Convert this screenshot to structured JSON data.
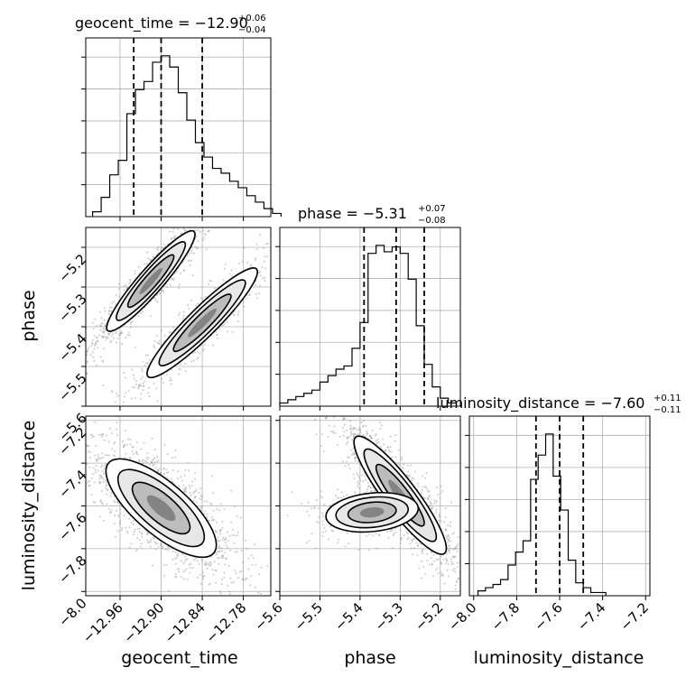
{
  "chart_data": {
    "type": "corner",
    "parameters": [
      {
        "name": "geocent_time",
        "title": {
          "label": "geocent_time = −12.90",
          "plus": "+0.06",
          "minus": "−0.04"
        },
        "range": [
          -13.01,
          -12.74
        ],
        "ticks": [
          "−12.96",
          "−12.90",
          "−12.84",
          "−12.78"
        ],
        "tick_values": [
          -12.96,
          -12.9,
          -12.84,
          -12.78
        ],
        "quantiles": [
          -12.94,
          -12.9,
          -12.84
        ],
        "histogram": {
          "bin_edges_start": -13.0,
          "bin_width": 0.0125,
          "counts": [
            0.03,
            0.12,
            0.26,
            0.35,
            0.64,
            0.79,
            0.84,
            0.96,
            1.0,
            0.93,
            0.77,
            0.6,
            0.46,
            0.37,
            0.3,
            0.27,
            0.22,
            0.18,
            0.13,
            0.09,
            0.05,
            0.02
          ]
        }
      },
      {
        "name": "phase",
        "title": {
          "label": "phase = −5.31",
          "plus": "+0.07",
          "minus": "−0.08"
        },
        "range": [
          -5.6,
          -5.15
        ],
        "ticks": [
          "−5.6",
          "−5.5",
          "−5.4",
          "−5.3",
          "−5.2"
        ],
        "tick_values": [
          -5.6,
          -5.5,
          -5.4,
          -5.3,
          -5.2
        ],
        "quantiles": [
          -5.39,
          -5.31,
          -5.24
        ],
        "histogram": {
          "bin_edges_start": -5.6,
          "bin_width": 0.02,
          "counts": [
            0.02,
            0.04,
            0.06,
            0.08,
            0.1,
            0.15,
            0.19,
            0.23,
            0.25,
            0.36,
            0.52,
            0.95,
            1.0,
            0.96,
            0.99,
            0.95,
            0.79,
            0.5,
            0.26,
            0.12,
            0.05,
            0.02
          ]
        }
      },
      {
        "name": "luminosity_distance",
        "title": {
          "label": "luminosity_distance = −7.60",
          "plus": "+0.11",
          "minus": "−0.11"
        },
        "range": [
          -8.02,
          -7.18
        ],
        "ticks": [
          "−8.0",
          "−7.8",
          "−7.6",
          "−7.4",
          "−7.2"
        ],
        "tick_values": [
          -8.0,
          -7.8,
          -7.6,
          -7.4,
          -7.2
        ],
        "quantiles": [
          -7.71,
          -7.6,
          -7.49
        ],
        "histogram": {
          "bin_edges_start": -7.98,
          "bin_width": 0.035,
          "counts": [
            0.03,
            0.05,
            0.07,
            0.1,
            0.19,
            0.27,
            0.34,
            0.72,
            0.87,
            1.0,
            0.74,
            0.53,
            0.22,
            0.08,
            0.05,
            0.02,
            0.02
          ]
        }
      }
    ],
    "pairs": [
      {
        "x": "geocent_time",
        "y": "phase",
        "modes": [
          {
            "center": [
              -12.915,
              -5.285
            ],
            "sx": 0.028,
            "sy": 0.055,
            "rho": 0.93,
            "weight": 0.6
          },
          {
            "center": [
              -12.84,
              -5.39
            ],
            "sx": 0.035,
            "sy": 0.06,
            "rho": 0.93,
            "weight": 0.4
          }
        ]
      },
      {
        "x": "geocent_time",
        "y": "luminosity_distance",
        "modes": [
          {
            "center": [
              -12.9,
              -7.61
            ],
            "sx": 0.035,
            "sy": 0.1,
            "rho": -0.75,
            "weight": 1.0
          }
        ]
      },
      {
        "x": "phase",
        "y": "luminosity_distance",
        "modes": [
          {
            "center": [
              -5.3,
              -7.55
            ],
            "sx": 0.05,
            "sy": 0.12,
            "rho": -0.9,
            "weight": 0.75
          },
          {
            "center": [
              -5.37,
              -7.63
            ],
            "sx": 0.05,
            "sy": 0.04,
            "rho": 0.2,
            "weight": 0.25
          }
        ]
      }
    ],
    "axis_labels": {
      "y_row1": "phase",
      "y_row2": "luminosity_distance",
      "x_col0": "geocent_time",
      "x_col1": "phase",
      "x_col2": "luminosity_distance"
    },
    "grid": true,
    "colors": {
      "line": "#000000",
      "grid": "#b0b0b0",
      "point": "#8c8c8c"
    }
  }
}
